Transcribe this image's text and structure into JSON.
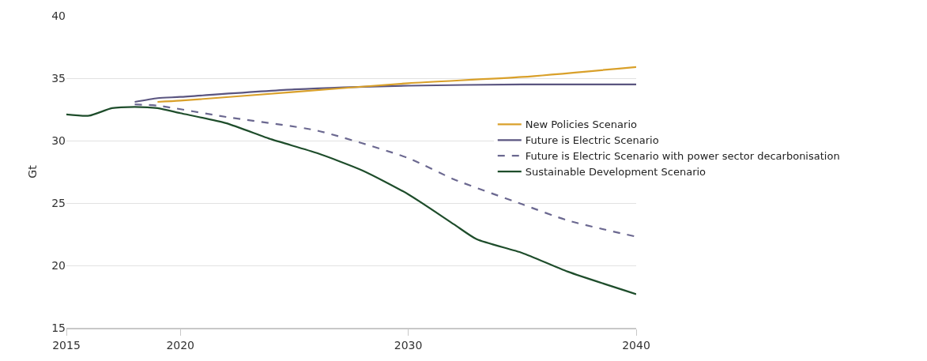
{
  "chart_data": {
    "type": "line",
    "ylabel": "Gt",
    "xlim": [
      2015,
      2040
    ],
    "xticks": [
      2015,
      2020,
      2030,
      2040
    ],
    "ylim": [
      15,
      40
    ],
    "yticks": [
      15,
      20,
      25,
      30,
      35,
      40
    ],
    "grid": "y",
    "legend": "right",
    "marker": "none",
    "series": [
      {
        "name": "New Policies Scenario",
        "color": "#d9a02a",
        "line_style": "solid",
        "x": [
          2019,
          2020,
          2025,
          2030,
          2035,
          2040
        ],
        "values": [
          33.1,
          33.2,
          33.9,
          34.6,
          35.1,
          35.9
        ]
      },
      {
        "name": "Future is Electric Scenario",
        "color": "#5a5580",
        "line_style": "solid",
        "x": [
          2018,
          2019,
          2020,
          2025,
          2030,
          2035,
          2040
        ],
        "values": [
          33.1,
          33.4,
          33.5,
          34.1,
          34.4,
          34.5,
          34.5
        ]
      },
      {
        "name": "Future is Electric Scenario with power sector decarbonisation",
        "color": "#6b6890",
        "line_style": "dashed",
        "x": [
          2018,
          2019,
          2022,
          2026,
          2030,
          2032,
          2035,
          2037,
          2040
        ],
        "values": [
          32.9,
          32.8,
          31.9,
          30.8,
          28.6,
          26.9,
          24.9,
          23.6,
          22.3
        ]
      },
      {
        "name": "Sustainable Development Scenario",
        "color": "#1e4d2b",
        "line_style": "solid",
        "x": [
          2015,
          2016,
          2017,
          2018,
          2019,
          2020,
          2022,
          2024,
          2026,
          2028,
          2030,
          2032,
          2033,
          2035,
          2037,
          2040
        ],
        "values": [
          32.1,
          32.0,
          32.6,
          32.7,
          32.6,
          32.2,
          31.4,
          30.1,
          29.0,
          27.6,
          25.7,
          23.3,
          22.1,
          21.0,
          19.5,
          17.7
        ]
      }
    ]
  }
}
